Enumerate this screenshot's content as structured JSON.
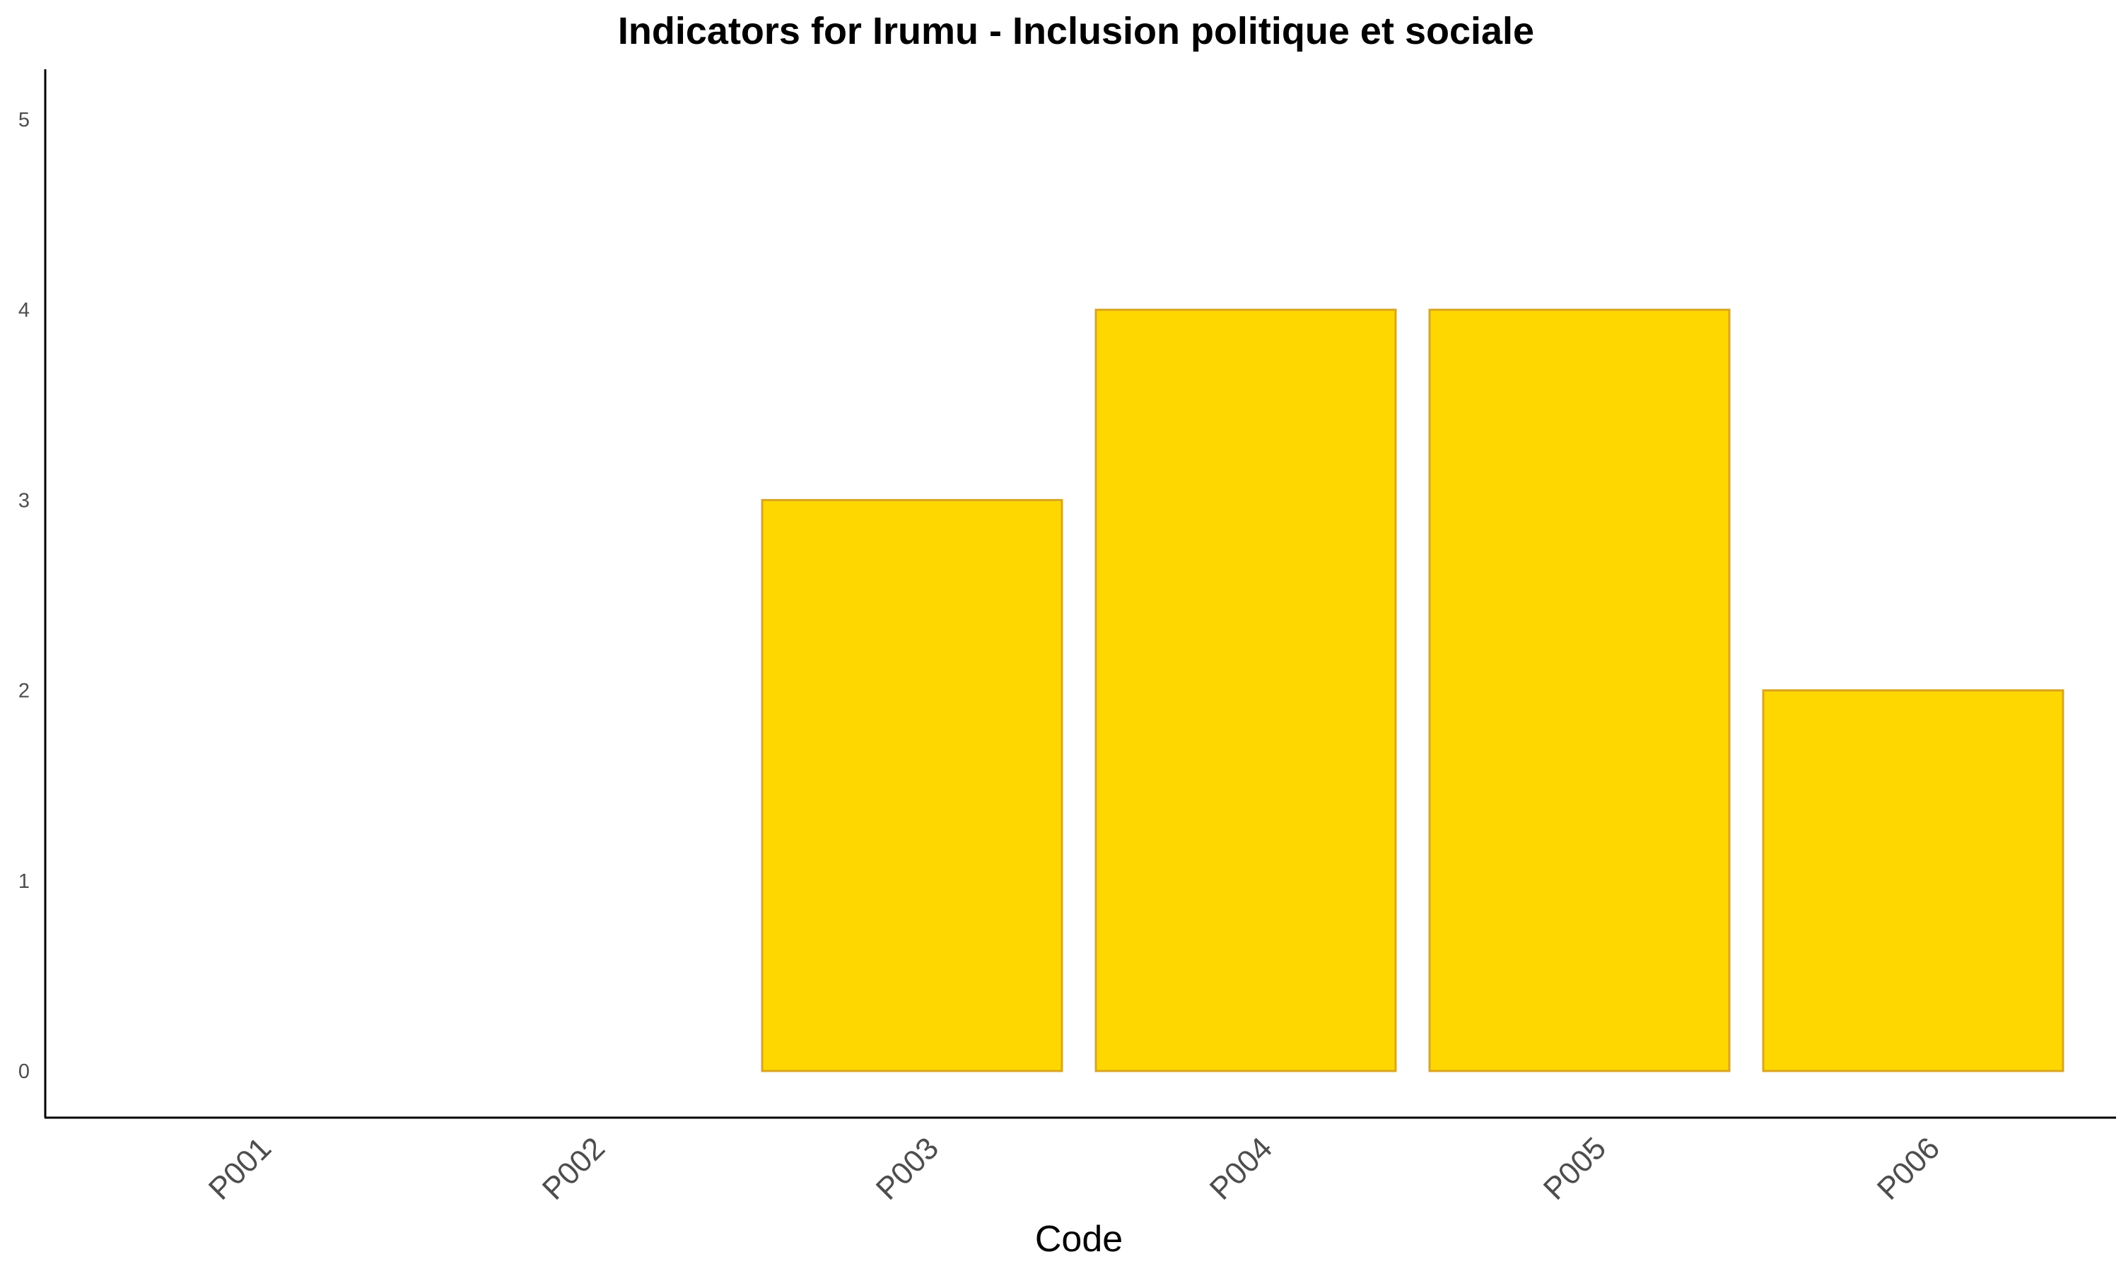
{
  "chart_data": {
    "type": "bar",
    "title": "Indicators for Irumu - Inclusion politique et sociale",
    "xlabel": "Code",
    "ylabel": "",
    "categories": [
      "P001",
      "P002",
      "P003",
      "P004",
      "P005",
      "P006"
    ],
    "values": [
      0,
      0,
      3,
      4,
      4,
      2
    ],
    "ylim": [
      0,
      5
    ],
    "yticks": [
      "0",
      "1",
      "2",
      "3",
      "4",
      "5"
    ],
    "grid": false,
    "legend": "none",
    "colors": {
      "bar_fill": "#FFD700",
      "bar_stroke": "#DAA520",
      "axis": "#000000",
      "tick_text": "#4d4d4d"
    }
  }
}
